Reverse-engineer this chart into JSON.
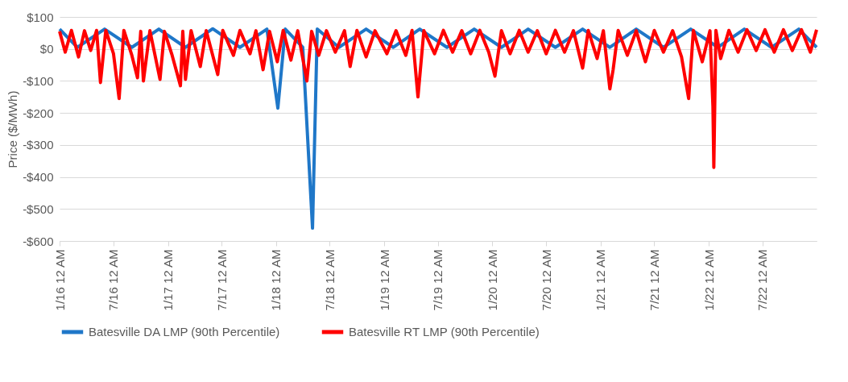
{
  "chart_data": {
    "type": "line",
    "ylabel": "Price ($/MWh)",
    "legend": "bottom",
    "grid": "y",
    "marker": "none",
    "line_style": "solid",
    "xlim": [
      "2016-01-01",
      "2022-12-31"
    ],
    "xticks": [
      {
        "value": "2016-01-01",
        "label": "1/16 12 AM"
      },
      {
        "value": "2016-07-01",
        "label": "7/16 12 AM"
      },
      {
        "value": "2017-01-01",
        "label": "1/17 12 AM"
      },
      {
        "value": "2017-07-01",
        "label": "7/17 12 AM"
      },
      {
        "value": "2018-01-01",
        "label": "1/18 12 AM"
      },
      {
        "value": "2018-07-01",
        "label": "7/18 12 AM"
      },
      {
        "value": "2019-01-01",
        "label": "1/19 12 AM"
      },
      {
        "value": "2019-07-01",
        "label": "7/19 12 AM"
      },
      {
        "value": "2020-01-01",
        "label": "1/20 12 AM"
      },
      {
        "value": "2020-07-01",
        "label": "7/20 12 AM"
      },
      {
        "value": "2021-01-01",
        "label": "1/21 12 AM"
      },
      {
        "value": "2021-07-01",
        "label": "7/21 12 AM"
      },
      {
        "value": "2022-01-01",
        "label": "1/22 12 AM"
      },
      {
        "value": "2022-07-01",
        "label": "7/22 12 AM"
      }
    ],
    "ylim": [
      -600,
      100
    ],
    "yticks": [
      {
        "value": 100,
        "label": "$100"
      },
      {
        "value": 0,
        "label": "$0"
      },
      {
        "value": -100,
        "label": "-$100"
      },
      {
        "value": -200,
        "label": "-$200"
      },
      {
        "value": -300,
        "label": "-$300"
      },
      {
        "value": -400,
        "label": "-$400"
      },
      {
        "value": -500,
        "label": "-$500"
      },
      {
        "value": -600,
        "label": "-$600"
      }
    ],
    "series": [
      {
        "name": "Batesville DA LMP (90th Percentile)",
        "color": "#1f77c8",
        "x": [
          "2016-01-01",
          "2016-03-01",
          "2016-06-01",
          "2016-09-01",
          "2016-12-01",
          "2017-03-01",
          "2017-06-01",
          "2017-09-01",
          "2017-12-01",
          "2018-01-07",
          "2018-02-01",
          "2018-04-01",
          "2018-05-04",
          "2018-05-20",
          "2018-08-01",
          "2018-11-01",
          "2019-02-01",
          "2019-05-01",
          "2019-08-01",
          "2019-11-01",
          "2020-02-01",
          "2020-05-01",
          "2020-08-01",
          "2020-11-01",
          "2021-02-01",
          "2021-05-01",
          "2021-08-01",
          "2021-11-01",
          "2022-02-01",
          "2022-05-01",
          "2022-08-01",
          "2022-11-01",
          "2022-12-31"
        ],
        "values": [
          62,
          5,
          62,
          5,
          62,
          5,
          63,
          5,
          62,
          -185,
          62,
          5,
          -560,
          62,
          5,
          62,
          5,
          62,
          5,
          62,
          5,
          62,
          5,
          62,
          5,
          62,
          5,
          62,
          5,
          62,
          5,
          62,
          5
        ]
      },
      {
        "name": "Batesville RT LMP (90th Percentile)",
        "color": "#ff0000",
        "x": [
          "2016-01-01",
          "2016-01-20",
          "2016-02-10",
          "2016-03-05",
          "2016-03-25",
          "2016-04-15",
          "2016-05-05",
          "2016-05-18",
          "2016-06-05",
          "2016-07-01",
          "2016-07-20",
          "2016-08-05",
          "2016-09-01",
          "2016-09-20",
          "2016-10-01",
          "2016-10-10",
          "2016-11-01",
          "2016-12-05",
          "2016-12-20",
          "2017-01-15",
          "2017-02-12",
          "2017-02-20",
          "2017-03-01",
          "2017-03-20",
          "2017-04-20",
          "2017-05-10",
          "2017-06-18",
          "2017-07-05",
          "2017-08-10",
          "2017-09-01",
          "2017-10-05",
          "2017-10-25",
          "2017-11-18",
          "2017-12-10",
          "2018-01-05",
          "2018-01-25",
          "2018-02-20",
          "2018-03-15",
          "2018-04-15",
          "2018-05-01",
          "2018-05-25",
          "2018-06-20",
          "2018-07-20",
          "2018-08-20",
          "2018-09-08",
          "2018-10-01",
          "2018-11-01",
          "2018-12-01",
          "2019-01-10",
          "2019-02-10",
          "2019-03-15",
          "2019-04-05",
          "2019-04-25",
          "2019-05-15",
          "2019-06-20",
          "2019-07-20",
          "2019-08-20",
          "2019-09-20",
          "2019-10-20",
          "2019-11-20",
          "2019-12-20",
          "2020-01-10",
          "2020-02-01",
          "2020-03-01",
          "2020-04-01",
          "2020-05-01",
          "2020-06-01",
          "2020-07-01",
          "2020-08-01",
          "2020-09-01",
          "2020-10-01",
          "2020-11-01",
          "2020-11-20",
          "2020-12-20",
          "2021-01-10",
          "2021-02-01",
          "2021-02-12",
          "2021-03-01",
          "2021-04-01",
          "2021-05-01",
          "2021-06-01",
          "2021-07-01",
          "2021-08-01",
          "2021-09-01",
          "2021-10-01",
          "2021-10-25",
          "2021-11-10",
          "2021-12-10",
          "2022-01-05",
          "2022-01-15",
          "2022-01-18",
          "2022-01-25",
          "2022-02-10",
          "2022-03-10",
          "2022-04-10",
          "2022-05-10",
          "2022-06-10",
          "2022-07-10",
          "2022-08-10",
          "2022-09-10",
          "2022-10-10",
          "2022-11-10",
          "2022-12-10",
          "2022-12-31"
        ],
        "values": [
          55,
          -10,
          58,
          -25,
          57,
          -5,
          58,
          -105,
          58,
          -15,
          -155,
          58,
          -20,
          -90,
          55,
          -100,
          57,
          -95,
          55,
          -20,
          -115,
          55,
          -95,
          57,
          -55,
          57,
          -80,
          58,
          -20,
          58,
          -15,
          57,
          -65,
          55,
          -40,
          58,
          -35,
          57,
          -100,
          55,
          -20,
          57,
          -10,
          57,
          -55,
          58,
          -25,
          57,
          -15,
          57,
          -20,
          58,
          -150,
          57,
          -15,
          58,
          -10,
          57,
          -15,
          58,
          -10,
          -85,
          57,
          -15,
          58,
          -10,
          57,
          -15,
          58,
          -10,
          57,
          -60,
          58,
          -30,
          57,
          -125,
          -65,
          58,
          -20,
          57,
          -40,
          58,
          -10,
          57,
          -25,
          -155,
          58,
          -40,
          57,
          -180,
          -370,
          58,
          -30,
          58,
          -10,
          60,
          -5,
          60,
          -10,
          60,
          -5,
          60,
          -10,
          60
        ]
      }
    ]
  }
}
